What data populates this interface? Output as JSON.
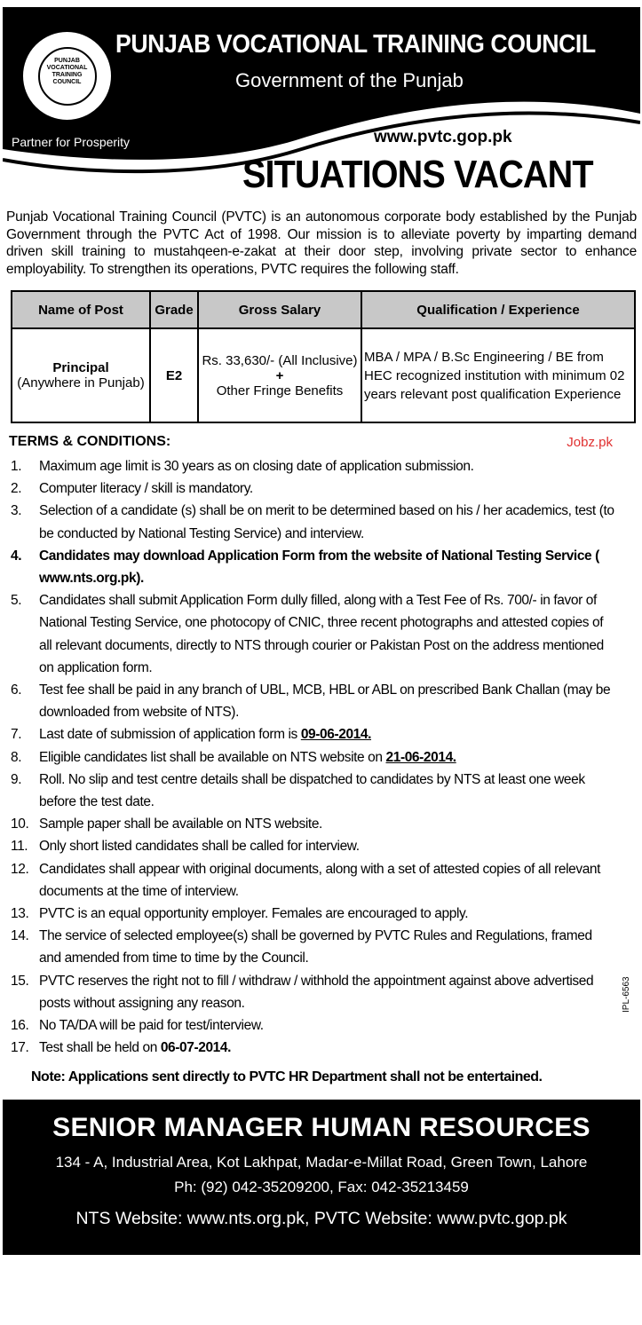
{
  "header": {
    "logo_text": "SUCCESS THROUGH SKILL PUNJAB VOCATIONAL TRAINING COUNCIL",
    "org": "PUNJAB  VOCATIONAL TRAINING COUNCIL",
    "gov": "Government of the Punjab",
    "tagline": "Partner for Prosperity",
    "website": "www.pvtc.gop.pk",
    "title": "SITUATIONS VACANT"
  },
  "intro": "Punjab Vocational Training Council (PVTC) is an autonomous corporate body established by the Punjab Government through the PVTC Act of 1998. Our mission is to alleviate poverty by imparting demand driven skill training to mustahqeen-e-zakat at their door step, involving private sector to enhance employability. To strengthen its operations, PVTC requires the following staff.",
  "table": {
    "headers": [
      "Name of Post",
      "Grade",
      "Gross Salary",
      "Qualification / Experience"
    ],
    "row": {
      "post": "Principal",
      "location": "(Anywhere in Punjab)",
      "grade": "E2",
      "salary": "Rs. 33,630/- (All Inclusive)",
      "plus": "+",
      "benefits": "Other Fringe Benefits",
      "qualification": "MBA / MPA / B.Sc Engineering / BE from HEC recognized institution with minimum 02 years relevant post qualification Experience"
    }
  },
  "terms_heading": "TERMS & CONDITIONS:",
  "terms": [
    {
      "n": "1.",
      "t": "Maximum age limit is 30 years as on closing date of application submission."
    },
    {
      "n": "2.",
      "t": "Computer literacy / skill is mandatory."
    },
    {
      "n": "3.",
      "t": "Selection of a candidate (s) shall be on merit to be determined based on his / her academics, test (to be conducted by National Testing Service) and interview."
    },
    {
      "n": "4.",
      "t": "Candidates may download Application Form from the website of National Testing Service ( www.nts.org.pk)."
    },
    {
      "n": "5.",
      "t": "Candidates shall submit Application Form dully filled, along with a Test Fee of Rs. 700/- in favor of National Testing Service, one photocopy of CNIC, three recent photographs and attested copies of all relevant documents, directly to NTS through courier or Pakistan Post on the address mentioned on application form."
    },
    {
      "n": "6.",
      "t": "Test fee shall be paid in any branch of UBL, MCB, HBL  or ABL on prescribed Bank Challan (may be downloaded from website of NTS)."
    },
    {
      "n": "7.",
      "t": "Last date of submission of application form is ",
      "u": "09-06-2014."
    },
    {
      "n": "8.",
      "t": "Eligible candidates list shall be available on NTS website on ",
      "u": "21-06-2014."
    },
    {
      "n": "9.",
      "t": "Roll. No slip and test centre details shall be dispatched to candidates by NTS at least one week before the test date."
    },
    {
      "n": "10.",
      "t": "Sample paper shall be available on NTS website."
    },
    {
      "n": "11.",
      "t": "Only short listed candidates shall be called for interview."
    },
    {
      "n": "12.",
      "t": "Candidates shall appear with original documents, along with a set of attested copies of all relevant documents at the time of interview."
    },
    {
      "n": "13.",
      "t": "PVTC is an equal opportunity employer. Females are encouraged to apply."
    },
    {
      "n": "14.",
      "t": "The service of selected employee(s) shall be governed by PVTC Rules and Regulations, framed and amended from time to time by the Council."
    },
    {
      "n": "15.",
      "t": "PVTC reserves the right not to fill / withdraw / withhold the appointment against above advertised posts without assigning any reason."
    },
    {
      "n": "16.",
      "t": "No TA/DA will be paid for test/interview."
    },
    {
      "n": "17.",
      "t": "Test shall be held on ",
      "b": "06-07-2014."
    }
  ],
  "note": "Note: Applications sent directly to PVTC HR Department shall not be entertained.",
  "ipl": "IPL-6563",
  "footer": {
    "title": "SENIOR MANAGER HUMAN RESOURCES",
    "address": "134 - A, Industrial Area, Kot Lakhpat, Madar-e-Millat Road, Green Town, Lahore",
    "phone": "Ph: (92) 042-35209200, Fax: 042-35213459",
    "websites": "NTS Website: www.nts.org.pk, PVTC Website: www.pvtc.gop.pk"
  },
  "watermark": "Jobz.pk",
  "colors": {
    "watermark": "#e03030",
    "header_bg": "#000000",
    "table_header_bg": "#c8c8c8"
  }
}
